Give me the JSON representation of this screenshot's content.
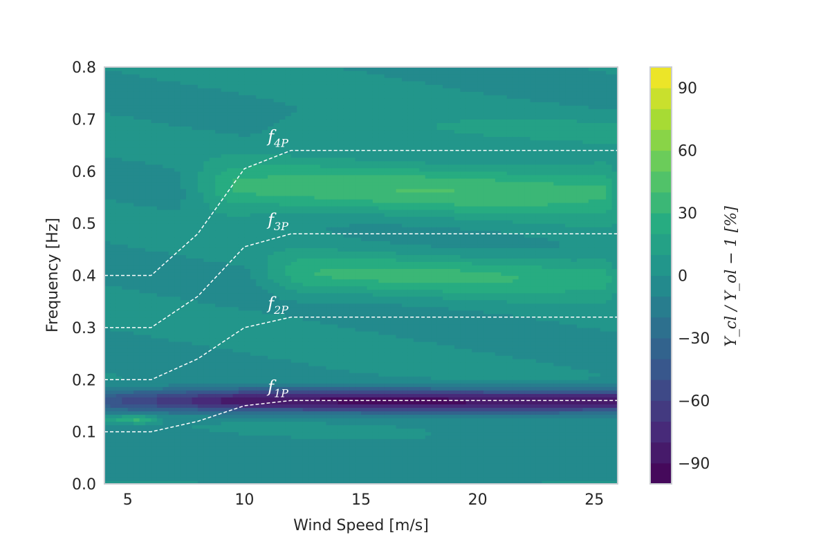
{
  "chart_data": {
    "type": "heatmap",
    "xlabel": "Wind Speed [m/s]",
    "ylabel": "Frequency [Hz]",
    "xlim": [
      4,
      26
    ],
    "ylim": [
      0.0,
      0.8
    ],
    "xticks": [
      5,
      10,
      15,
      20,
      25
    ],
    "yticks": [
      "0.0",
      "0.1",
      "0.2",
      "0.3",
      "0.4",
      "0.5",
      "0.6",
      "0.7",
      "0.8"
    ],
    "grid": false,
    "colormap": "viridis",
    "colorbar": {
      "label": "Y_cl / Y_ol − 1 [%]",
      "range": [
        -100,
        100
      ],
      "ticks": [
        "90",
        "60",
        "30",
        "0",
        "−30",
        "−60",
        "−90"
      ],
      "tick_values": [
        90,
        60,
        30,
        0,
        -30,
        -60,
        -90
      ],
      "levels": 20
    },
    "harmonics": [
      {
        "label_base": "f",
        "label_sub": "1P",
        "x": [
          4,
          6,
          8,
          10,
          12,
          26
        ],
        "y": [
          0.1,
          0.1,
          0.12,
          0.15,
          0.16,
          0.16
        ]
      },
      {
        "label_base": "f",
        "label_sub": "2P",
        "x": [
          4,
          6,
          8,
          10,
          12,
          26
        ],
        "y": [
          0.2,
          0.2,
          0.24,
          0.3,
          0.32,
          0.32
        ]
      },
      {
        "label_base": "f",
        "label_sub": "3P",
        "x": [
          4,
          6,
          8,
          10,
          12,
          26
        ],
        "y": [
          0.3,
          0.3,
          0.36,
          0.455,
          0.48,
          0.48
        ]
      },
      {
        "label_base": "f",
        "label_sub": "4P",
        "x": [
          4,
          6,
          8,
          10,
          12,
          26
        ],
        "y": [
          0.4,
          0.4,
          0.48,
          0.605,
          0.64,
          0.64
        ]
      }
    ],
    "field_features": [
      {
        "kind": "trough",
        "center_y": 0.16,
        "width": 0.022,
        "depth": -90,
        "x_from": 4,
        "x_to": 26
      },
      {
        "kind": "ridge",
        "center_y": 0.565,
        "width": 0.05,
        "level": 35,
        "x_from": 8,
        "x_to": 26
      },
      {
        "kind": "ridge",
        "center_y": 0.4,
        "width": 0.04,
        "level": 28,
        "x_from": 11,
        "x_to": 26
      },
      {
        "kind": "ridge",
        "center_y": 0.125,
        "width": 0.008,
        "level": 40,
        "x_from": 4,
        "x_to": 6
      }
    ]
  }
}
